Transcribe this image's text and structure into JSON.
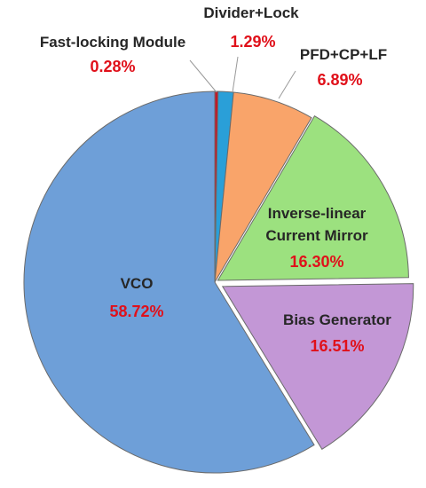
{
  "chart_data": {
    "type": "pie",
    "title": "",
    "slices": [
      {
        "name": "Fast-locking Module",
        "value": 0.28,
        "label": "0.28%",
        "color": "#c0182a",
        "explode": 0
      },
      {
        "name": "Divider+Lock",
        "value": 1.29,
        "label": "1.29%",
        "color": "#2a9fd8",
        "explode": 0
      },
      {
        "name": "PFD+CP+LF",
        "value": 6.89,
        "label": "6.89%",
        "color": "#f9a46a",
        "explode": 0
      },
      {
        "name": [
          "Inverse-linear",
          "Current Mirror"
        ],
        "value": 16.3,
        "label": "16.30%",
        "color": "#9ce17f",
        "explode": 4
      },
      {
        "name": "Bias Generator",
        "value": 16.51,
        "label": "16.51%",
        "color": "#c397d6",
        "explode": 10
      },
      {
        "name": "VCO",
        "value": 58.72,
        "label": "58.72%",
        "color": "#6e9fd8",
        "explode": 0
      }
    ]
  }
}
